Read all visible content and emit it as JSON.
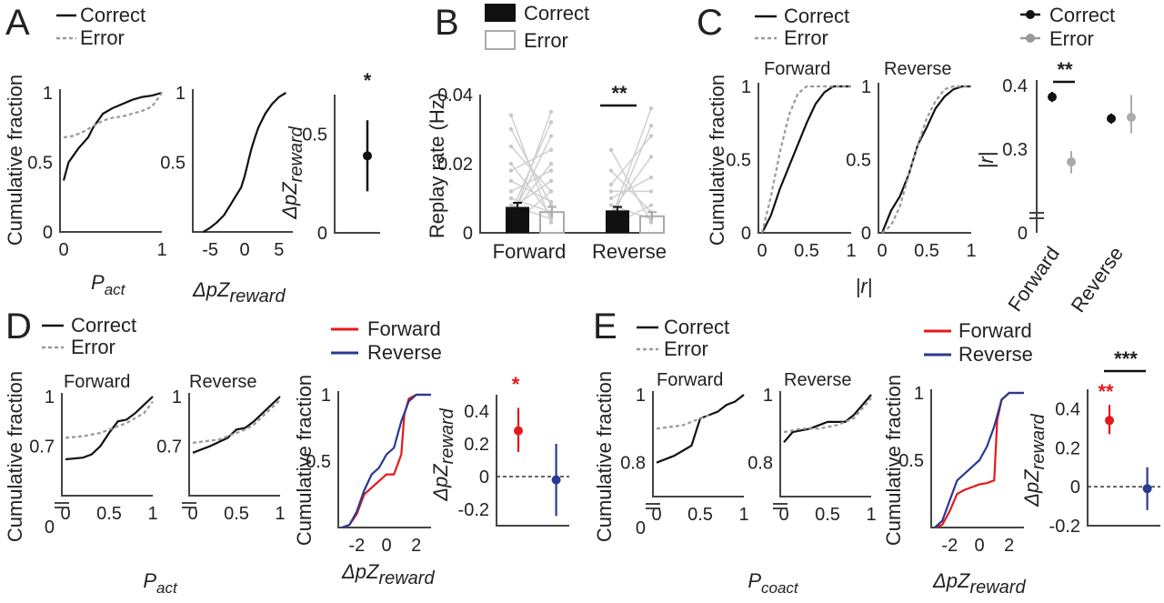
{
  "colors": {
    "correct": "#111111",
    "error": "#999999",
    "forward": "#e4181b",
    "reverse": "#2b3990",
    "bar_correct": "#111111",
    "bar_error_fill": "#ffffff",
    "bar_error_edge": "#aaaaaa",
    "pair_line": "#d0d0d0"
  },
  "panels": {
    "A": {
      "letter": "A",
      "legend": [
        "Correct",
        "Error"
      ],
      "ylabel": "Cumulative fraction",
      "xlabel1_main": "P",
      "xlabel1_sub": "act",
      "xlabel2_main": "ΔpZ",
      "xlabel2_sub": "reward",
      "ylabel3_main": "ΔpZ",
      "ylabel3_sub": "reward",
      "sig": "*"
    },
    "B": {
      "letter": "B",
      "legend": [
        "Correct",
        "Error"
      ],
      "ylabel": "Replay rate (Hz)",
      "categories": [
        "Forward",
        "Reverse"
      ],
      "sig": "**"
    },
    "C": {
      "letter": "C",
      "legend": [
        "Correct",
        "Error"
      ],
      "legend2": [
        "Correct",
        "Error"
      ],
      "ylabel": "Cumulative fraction",
      "sub1": "Forward",
      "sub2": "Reverse",
      "xlabel": "|r|",
      "ylabel3": "|r|",
      "categories": [
        "Forward",
        "Reverse"
      ],
      "sig": "**"
    },
    "D": {
      "letter": "D",
      "legend": [
        "Correct",
        "Error"
      ],
      "legend2": [
        "Forward",
        "Reverse"
      ],
      "ylabel": "Cumulative fraction",
      "sub1": "Forward",
      "sub2": "Reverse",
      "xlabel_main": "P",
      "xlabel_sub": "act",
      "xlabel3_main": "ΔpZ",
      "xlabel3_sub": "reward",
      "ylabel4_main": "ΔpZ",
      "ylabel4_sub": "reward",
      "sig": "*"
    },
    "E": {
      "letter": "E",
      "legend": [
        "Correct",
        "Error"
      ],
      "legend2": [
        "Forward",
        "Reverse"
      ],
      "ylabel": "Cumulative fraction",
      "sub1": "Forward",
      "sub2": "Reverse",
      "xlabel_main": "P",
      "xlabel_sub": "coact",
      "xlabel3_main": "ΔpZ",
      "xlabel3_sub": "reward",
      "ylabel4_main": "ΔpZ",
      "ylabel4_sub": "reward",
      "sig_red": "**",
      "sig_black": "***"
    }
  },
  "chart_data": [
    {
      "id": "A1",
      "type": "line",
      "xlim": [
        0,
        1
      ],
      "ylim": [
        0,
        1
      ],
      "xticks": [
        "0",
        "1"
      ],
      "yticks": [
        "0",
        "0.5",
        "1"
      ],
      "series": [
        {
          "name": "Correct",
          "x": [
            0,
            0.05,
            0.15,
            0.25,
            0.3,
            0.4,
            0.5,
            0.6,
            0.7,
            0.8,
            0.9,
            1.0
          ],
          "y": [
            0.37,
            0.5,
            0.6,
            0.68,
            0.75,
            0.85,
            0.89,
            0.92,
            0.95,
            0.97,
            0.98,
            1.0
          ]
        },
        {
          "name": "Error",
          "x": [
            0,
            0.1,
            0.2,
            0.3,
            0.4,
            0.5,
            0.6,
            0.7,
            0.8,
            0.9,
            1.0
          ],
          "y": [
            0.68,
            0.69,
            0.72,
            0.76,
            0.8,
            0.82,
            0.83,
            0.85,
            0.87,
            0.9,
            1.0
          ]
        }
      ]
    },
    {
      "id": "A2",
      "type": "line",
      "xlim": [
        -7,
        7
      ],
      "ylim": [
        0,
        1
      ],
      "xticks": [
        "-5",
        "0",
        "5"
      ],
      "yticks": [
        "0.5",
        "1"
      ],
      "series": [
        {
          "name": "Correct",
          "x": [
            -6,
            -5,
            -4,
            -3,
            -2,
            -1.5,
            -1,
            -0.5,
            0,
            0.3,
            0.6,
            1,
            1.5,
            2,
            3,
            4,
            5,
            6
          ],
          "y": [
            0.0,
            0.03,
            0.07,
            0.12,
            0.2,
            0.24,
            0.28,
            0.32,
            0.4,
            0.46,
            0.52,
            0.6,
            0.68,
            0.75,
            0.85,
            0.92,
            0.97,
            1.0
          ]
        }
      ]
    },
    {
      "id": "A3",
      "type": "scatter",
      "ylim": [
        0,
        0.7
      ],
      "yticks": [
        "0",
        "0.5"
      ],
      "point": {
        "y": 0.39,
        "lo": 0.21,
        "hi": 0.57
      }
    },
    {
      "id": "B",
      "type": "bar",
      "categories": [
        "Forward",
        "Reverse"
      ],
      "ylim": [
        0,
        0.04
      ],
      "yticks": [
        "0",
        "0.02",
        "0.04"
      ],
      "series": [
        {
          "name": "Correct",
          "values": [
            0.0075,
            0.0065
          ],
          "err": [
            0.0012,
            0.001
          ]
        },
        {
          "name": "Error",
          "values": [
            0.006,
            0.0048
          ],
          "err": [
            0.0015,
            0.0012
          ]
        }
      ]
    },
    {
      "id": "C1",
      "type": "line",
      "xlim": [
        0,
        1
      ],
      "ylim": [
        0,
        1
      ],
      "xticks": [
        "0",
        "0.5",
        "1"
      ],
      "yticks": [
        "0",
        "0.5",
        "1"
      ],
      "series": [
        {
          "name": "Correct",
          "x": [
            0,
            0.1,
            0.2,
            0.3,
            0.4,
            0.5,
            0.6,
            0.7,
            0.8,
            0.9,
            1.0
          ],
          "y": [
            0,
            0.12,
            0.3,
            0.45,
            0.6,
            0.75,
            0.88,
            0.96,
            1.0,
            1.0,
            1.0
          ]
        },
        {
          "name": "Error",
          "x": [
            0,
            0.1,
            0.2,
            0.3,
            0.4,
            0.5,
            0.6,
            1.0
          ],
          "y": [
            0,
            0.25,
            0.55,
            0.8,
            0.95,
            1.0,
            1.0,
            1.0
          ]
        }
      ]
    },
    {
      "id": "C2",
      "type": "line",
      "xlim": [
        0,
        1
      ],
      "ylim": [
        0,
        1
      ],
      "xticks": [
        "0",
        "0.5",
        "1"
      ],
      "yticks": [
        "0",
        "0.5",
        "1"
      ],
      "series": [
        {
          "name": "Correct",
          "x": [
            0,
            0.1,
            0.2,
            0.3,
            0.4,
            0.5,
            0.6,
            0.7,
            0.8,
            0.9,
            1.0
          ],
          "y": [
            0,
            0.15,
            0.25,
            0.4,
            0.6,
            0.72,
            0.85,
            0.93,
            0.98,
            1.0,
            1.0
          ]
        },
        {
          "name": "Error",
          "x": [
            0,
            0.1,
            0.2,
            0.3,
            0.4,
            0.5,
            0.6,
            0.7,
            0.8,
            1.0
          ],
          "y": [
            0,
            0.05,
            0.18,
            0.4,
            0.6,
            0.78,
            0.9,
            0.98,
            1.0,
            1.0
          ]
        }
      ]
    },
    {
      "id": "C3",
      "type": "scatter",
      "categories": [
        "Forward",
        "Reverse"
      ],
      "ylim": [
        0.2,
        0.42
      ],
      "yticks": [
        "0",
        "0.3",
        "0.4"
      ],
      "series": [
        {
          "name": "Correct",
          "values": [
            0.382,
            0.348
          ],
          "lo": [
            0.374,
            0.34
          ],
          "hi": [
            0.39,
            0.356
          ]
        },
        {
          "name": "Error",
          "values": [
            0.28,
            0.35
          ],
          "lo": [
            0.262,
            0.325
          ],
          "hi": [
            0.297,
            0.385
          ]
        }
      ]
    },
    {
      "id": "D1",
      "type": "line",
      "xlim": [
        0,
        1
      ],
      "ylim": [
        0.4,
        1
      ],
      "xticks": [
        "0",
        "0.5",
        "1"
      ],
      "yticks": [
        "0",
        "0.7",
        "1"
      ],
      "series": [
        {
          "name": "Correct",
          "x": [
            0,
            0.2,
            0.3,
            0.4,
            0.5,
            0.6,
            0.7,
            0.8,
            0.9,
            1.0
          ],
          "y": [
            0.62,
            0.63,
            0.65,
            0.7,
            0.78,
            0.85,
            0.86,
            0.9,
            0.95,
            1.0
          ]
        },
        {
          "name": "Error",
          "x": [
            0,
            0.2,
            0.4,
            0.5,
            0.6,
            0.7,
            0.8,
            0.9,
            1.0
          ],
          "y": [
            0.75,
            0.76,
            0.78,
            0.8,
            0.82,
            0.84,
            0.87,
            0.9,
            0.97
          ]
        }
      ]
    },
    {
      "id": "D2",
      "type": "line",
      "xlim": [
        0,
        1
      ],
      "ylim": [
        0.4,
        1
      ],
      "xticks": [
        "0",
        "0.5",
        "1"
      ],
      "yticks": [
        "0.7",
        "1"
      ],
      "series": [
        {
          "name": "Correct",
          "x": [
            0,
            0.2,
            0.4,
            0.5,
            0.6,
            0.7,
            0.8,
            0.9,
            1.0
          ],
          "y": [
            0.66,
            0.7,
            0.75,
            0.8,
            0.81,
            0.85,
            0.9,
            0.95,
            1.0
          ]
        },
        {
          "name": "Error",
          "x": [
            0,
            0.3,
            0.5,
            0.6,
            0.7,
            0.8,
            0.9,
            1.0
          ],
          "y": [
            0.72,
            0.74,
            0.78,
            0.8,
            0.83,
            0.88,
            0.93,
            0.98
          ]
        }
      ]
    },
    {
      "id": "D3",
      "type": "line",
      "xlim": [
        -3,
        3
      ],
      "ylim": [
        0,
        1
      ],
      "xticks": [
        "-2",
        "0",
        "2"
      ],
      "yticks": [
        "0.5",
        "1"
      ],
      "series": [
        {
          "name": "Forward",
          "x": [
            -3,
            -2.5,
            -2,
            -1.5,
            -1,
            -0.5,
            0,
            0.5,
            1,
            1.2,
            1.5,
            2,
            3
          ],
          "y": [
            0,
            0.02,
            0.1,
            0.25,
            0.3,
            0.35,
            0.4,
            0.4,
            0.55,
            0.85,
            0.97,
            1.0,
            1.0
          ]
        },
        {
          "name": "Reverse",
          "x": [
            -3,
            -2.5,
            -2,
            -1.5,
            -1,
            -0.5,
            0,
            0.5,
            1,
            1.5,
            2,
            3
          ],
          "y": [
            0,
            0.02,
            0.12,
            0.28,
            0.4,
            0.45,
            0.55,
            0.6,
            0.8,
            0.95,
            1.0,
            1.0
          ]
        }
      ]
    },
    {
      "id": "D4",
      "type": "scatter",
      "categories": [
        "Forward",
        "Reverse"
      ],
      "ylim": [
        -0.3,
        0.5
      ],
      "yticks": [
        "-0.2",
        "0",
        "0.2",
        "0.4"
      ],
      "reference_y": 0,
      "series": [
        {
          "name": "Forward",
          "values": [
            0.28
          ],
          "lo": [
            0.15
          ],
          "hi": [
            0.42
          ]
        },
        {
          "name": "Reverse",
          "values": [
            -0.02
          ],
          "lo": [
            -0.24
          ],
          "hi": [
            0.2
          ]
        }
      ]
    },
    {
      "id": "E1",
      "type": "line",
      "xlim": [
        0,
        1
      ],
      "ylim": [
        0.7,
        1
      ],
      "xticks": [
        "0",
        "0.5",
        "1"
      ],
      "yticks": [
        "0",
        "0.8",
        "1"
      ],
      "series": [
        {
          "name": "Correct",
          "x": [
            0,
            0.2,
            0.4,
            0.5,
            0.6,
            0.7,
            0.8,
            0.9,
            1.0
          ],
          "y": [
            0.8,
            0.82,
            0.85,
            0.93,
            0.94,
            0.95,
            0.97,
            0.98,
            1.0
          ]
        },
        {
          "name": "Error",
          "x": [
            0,
            0.3,
            0.5,
            0.6
          ],
          "y": [
            0.9,
            0.91,
            0.93,
            0.94
          ]
        }
      ]
    },
    {
      "id": "E2",
      "type": "line",
      "xlim": [
        0,
        1
      ],
      "ylim": [
        0.7,
        1
      ],
      "xticks": [
        "0",
        "0.5",
        "1"
      ],
      "yticks": [
        "0.8",
        "1"
      ],
      "series": [
        {
          "name": "Correct",
          "x": [
            0,
            0.1,
            0.3,
            0.5,
            0.6,
            0.7,
            0.8,
            0.9,
            1.0
          ],
          "y": [
            0.86,
            0.89,
            0.9,
            0.92,
            0.92,
            0.92,
            0.94,
            0.97,
            1.0
          ]
        },
        {
          "name": "Error",
          "x": [
            0,
            0.2,
            0.4,
            0.6,
            0.7,
            0.8,
            0.9,
            1.0
          ],
          "y": [
            0.89,
            0.9,
            0.9,
            0.91,
            0.92,
            0.93,
            0.96,
            0.99
          ]
        }
      ]
    },
    {
      "id": "E3",
      "type": "line",
      "xlim": [
        -3,
        3
      ],
      "ylim": [
        0,
        1
      ],
      "xticks": [
        "-2",
        "0",
        "2"
      ],
      "yticks": [
        "0.5",
        "1"
      ],
      "series": [
        {
          "name": "Forward",
          "x": [
            -3,
            -2.5,
            -2,
            -1.5,
            -1,
            -0.5,
            0,
            0.5,
            1,
            1.2,
            1.5,
            2,
            3
          ],
          "y": [
            0,
            0.02,
            0.12,
            0.25,
            0.28,
            0.3,
            0.32,
            0.33,
            0.35,
            0.8,
            0.95,
            1.0,
            1.0
          ]
        },
        {
          "name": "Reverse",
          "x": [
            -3,
            -2.5,
            -2,
            -1.5,
            -1,
            -0.5,
            0,
            0.5,
            1,
            1.5,
            2,
            3
          ],
          "y": [
            0,
            0.05,
            0.2,
            0.35,
            0.4,
            0.45,
            0.5,
            0.6,
            0.75,
            0.95,
            1.0,
            1.0
          ]
        }
      ]
    },
    {
      "id": "E4",
      "type": "scatter",
      "categories": [
        "Forward",
        "Reverse"
      ],
      "ylim": [
        -0.2,
        0.5
      ],
      "yticks": [
        "-0.2",
        "0",
        "0.2",
        "0.4"
      ],
      "reference_y": 0,
      "series": [
        {
          "name": "Forward",
          "values": [
            0.34
          ],
          "lo": [
            0.27
          ],
          "hi": [
            0.42
          ]
        },
        {
          "name": "Reverse",
          "values": [
            -0.01
          ],
          "lo": [
            -0.12
          ],
          "hi": [
            0.1
          ]
        }
      ]
    }
  ]
}
